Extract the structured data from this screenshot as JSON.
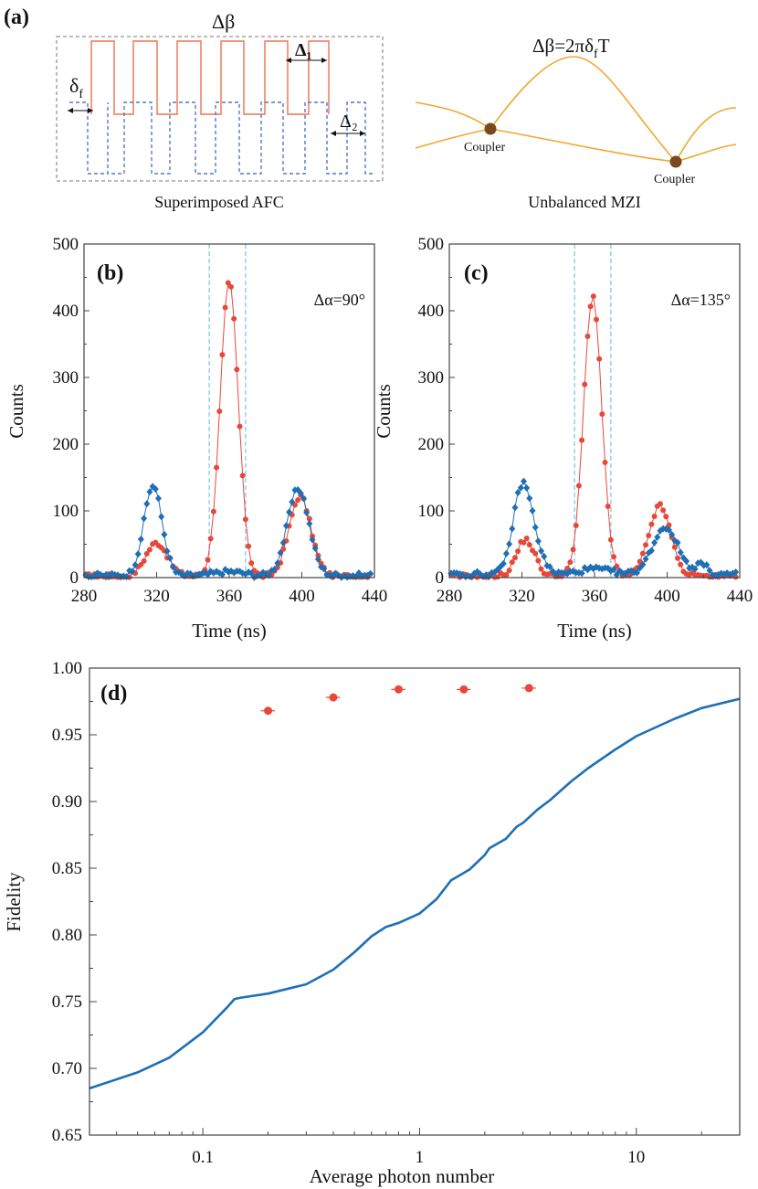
{
  "colors": {
    "red": "#E8483A",
    "blue": "#1F6FB5",
    "orange": "#F0A830",
    "afc_red": "#F07050",
    "afc_blue": "#5577CC",
    "coupler": "#7A4A1E",
    "vline": "#7CC4E8"
  },
  "panel_a": {
    "label": "(a)",
    "delta_beta": "Δβ",
    "delta_f": "δ",
    "delta_f_sub": "f",
    "delta1": "Δ₁",
    "delta2": "Δ₂",
    "left_caption": "Superimposed AFC",
    "mzi_formula_pre": "Δβ=2πδ",
    "mzi_formula_sub": "f",
    "mzi_formula_post": "T",
    "coupler_label_1": "Coupler",
    "coupler_label_2": "Coupler",
    "right_caption": "Unbalanced MZI"
  },
  "chart_data": [
    {
      "id": "b",
      "type": "scatter",
      "label": "(b)",
      "annotation": "Δα=90°",
      "xlabel": "Time (ns)",
      "ylabel": "Counts",
      "xlim": [
        280,
        440
      ],
      "ylim": [
        0,
        500
      ],
      "xticks": [
        280,
        320,
        360,
        400,
        440
      ],
      "yticks": [
        0,
        100,
        200,
        300,
        400,
        500
      ],
      "window_lines": [
        349,
        369
      ],
      "series": [
        {
          "name": "red",
          "peaks": [
            [
              320,
              50,
              6
            ],
            [
              360,
              440,
              5
            ],
            [
              399,
              120,
              6
            ]
          ],
          "baseline": 2
        },
        {
          "name": "blue",
          "peaks": [
            [
              318,
              135,
              5
            ],
            [
              360,
              6,
              8
            ],
            [
              398,
              130,
              6
            ]
          ],
          "baseline": 3
        }
      ]
    },
    {
      "id": "c",
      "type": "scatter",
      "label": "(c)",
      "annotation": "Δα=135°",
      "xlabel": "Time (ns)",
      "ylabel": "Counts",
      "xlim": [
        280,
        440
      ],
      "ylim": [
        0,
        500
      ],
      "xticks": [
        280,
        320,
        360,
        400,
        440
      ],
      "yticks": [
        0,
        100,
        200,
        300,
        400,
        500
      ],
      "window_lines": [
        349,
        369
      ],
      "series": [
        {
          "name": "red",
          "peaks": [
            [
              322,
              55,
              5
            ],
            [
              359,
              420,
              5
            ],
            [
              396,
              105,
              6
            ]
          ],
          "baseline": 2
        },
        {
          "name": "blue",
          "peaks": [
            [
              320,
              125,
              5
            ],
            [
              327,
              30,
              5
            ],
            [
              360,
              8,
              8
            ],
            [
              399,
              70,
              7
            ],
            [
              419,
              15,
              3
            ]
          ],
          "baseline": 5
        }
      ]
    },
    {
      "id": "d",
      "type": "scatter",
      "label": "(d)",
      "xlabel": "Average photon number",
      "ylabel": "Fidelity",
      "xscale": "log",
      "xlim": [
        0.03,
        30
      ],
      "ylim": [
        0.65,
        1.0
      ],
      "xticks": [
        0.1,
        1,
        10
      ],
      "xtick_labels": [
        "0.1",
        "1",
        "10"
      ],
      "yticks": [
        0.65,
        0.7,
        0.75,
        0.8,
        0.85,
        0.9,
        0.95,
        1.0
      ],
      "ytick_labels": [
        "0.65",
        "0.70",
        "0.75",
        "0.80",
        "0.85",
        "0.90",
        "0.95",
        "1.00"
      ],
      "points": {
        "x": [
          0.2,
          0.4,
          0.8,
          1.6,
          3.2
        ],
        "y": [
          0.968,
          0.978,
          0.984,
          0.984,
          0.985
        ],
        "xerr": [
          0.015,
          0.03,
          0.06,
          0.12,
          0.24
        ],
        "yerr": [
          0.002,
          0.002,
          0.0015,
          0.0015,
          0.001
        ]
      },
      "curve": {
        "x": [
          0.03,
          0.05,
          0.07,
          0.1,
          0.13,
          0.14,
          0.15,
          0.2,
          0.3,
          0.4,
          0.5,
          0.6,
          0.7,
          0.8,
          1.0,
          1.2,
          1.4,
          1.7,
          2.0,
          2.1,
          2.5,
          2.8,
          3.0,
          3.5,
          4.0,
          5.0,
          6.0,
          8.0,
          10,
          15,
          20,
          30
        ],
        "y": [
          0.685,
          0.697,
          0.708,
          0.727,
          0.746,
          0.752,
          0.753,
          0.756,
          0.763,
          0.774,
          0.787,
          0.799,
          0.806,
          0.809,
          0.816,
          0.827,
          0.841,
          0.849,
          0.86,
          0.865,
          0.872,
          0.881,
          0.884,
          0.894,
          0.901,
          0.915,
          0.925,
          0.939,
          0.949,
          0.962,
          0.97,
          0.977
        ]
      }
    }
  ]
}
